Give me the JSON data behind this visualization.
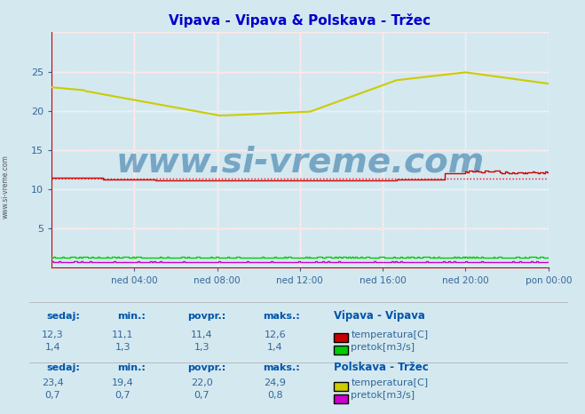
{
  "title": "Vipava - Vipava & Polskava - Tržec",
  "title_color": "#0000cc",
  "bg_color": "#d4e8f0",
  "plot_bg_color": "#d4e8f0",
  "grid_color_major": "#ffffff",
  "grid_color_minor": "#ffcccc",
  "xlim": [
    0,
    288
  ],
  "ylim": [
    0,
    30
  ],
  "yticks": [
    0,
    5,
    10,
    15,
    20,
    25,
    30
  ],
  "xtick_labels": [
    "ned 04:00",
    "ned 08:00",
    "ned 12:00",
    "ned 16:00",
    "ned 20:00",
    "pon 00:00"
  ],
  "xtick_positions": [
    48,
    96,
    144,
    192,
    240,
    288
  ],
  "vipava_temp_color": "#cc0000",
  "vipava_pretok_color": "#00cc00",
  "polskava_temp_color": "#cccc00",
  "polskava_pretok_color": "#cc00cc",
  "avg_line_color": "#ff0000",
  "avg_line_value": 11.4,
  "watermark": "www.si-vreme.com",
  "watermark_color": "#1a6699",
  "legend_items": [
    {
      "label": "temperatura[C]",
      "color": "#cc0000",
      "station": "Vipava - Vipava"
    },
    {
      "label": "pretok[m3/s]",
      "color": "#00cc00",
      "station": "Vipava - Vipava"
    },
    {
      "label": "temperatura[C]",
      "color": "#cccc00",
      "station": "Polskava - Tržec"
    },
    {
      "label": "pretok[m3/s]",
      "color": "#cc00cc",
      "station": "Polskava - Tržec"
    }
  ],
  "stats_vipava": {
    "sedaj": [
      "12,3",
      "1,4"
    ],
    "min": [
      "11,1",
      "1,3"
    ],
    "povpr": [
      "11,4",
      "1,3"
    ],
    "maks": [
      "12,6",
      "1,4"
    ]
  },
  "stats_polskava": {
    "sedaj": [
      "23,4",
      "0,7"
    ],
    "min": [
      "19,4",
      "0,7"
    ],
    "povpr": [
      "22,0",
      "0,7"
    ],
    "maks": [
      "24,9",
      "0,8"
    ]
  }
}
